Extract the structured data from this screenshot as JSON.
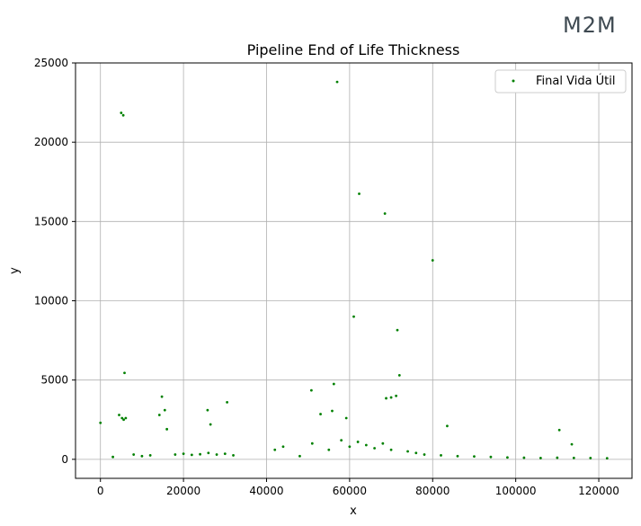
{
  "logo_text": "M2M",
  "chart_data": {
    "type": "scatter",
    "title": "Pipeline End of Life Thickness",
    "xlabel": "x",
    "ylabel": "y",
    "xlim": [
      -6000,
      128000
    ],
    "ylim": [
      -1200,
      25000
    ],
    "xticks": [
      0,
      20000,
      40000,
      60000,
      80000,
      100000,
      120000
    ],
    "yticks": [
      0,
      5000,
      10000,
      15000,
      20000,
      25000
    ],
    "grid": true,
    "legend": "top-right",
    "series": [
      {
        "name": "Final Vida Útil",
        "color": "#008000",
        "x": [
          5000,
          5500,
          57000,
          62300,
          68500,
          80000,
          61000,
          71500,
          72000,
          5800,
          56200,
          50800,
          55800,
          30500,
          14800,
          25800,
          0,
          4500,
          5200,
          5600,
          6100,
          14200,
          15500,
          16000,
          26500,
          68800,
          70000,
          71200,
          59200,
          53000,
          83500,
          110500,
          113500,
          3000,
          8000,
          10000,
          12000,
          18000,
          20000,
          22000,
          24000,
          26000,
          28000,
          30000,
          32000,
          42000,
          44000,
          48000,
          51000,
          55000,
          58000,
          60000,
          62000,
          64000,
          66000,
          68000,
          70000,
          74000,
          76000,
          78000,
          82000,
          86000,
          90000,
          94000,
          98000,
          102000,
          106000,
          110000,
          114000,
          118000,
          122000
        ],
        "y": [
          21850,
          21700,
          23800,
          16750,
          15500,
          12550,
          9000,
          8150,
          5300,
          5450,
          4750,
          4350,
          3050,
          3600,
          3950,
          3100,
          2300,
          2800,
          2600,
          2500,
          2600,
          2800,
          3100,
          1900,
          2200,
          3850,
          3900,
          4000,
          2600,
          2850,
          2100,
          1850,
          950,
          150,
          300,
          200,
          250,
          300,
          350,
          280,
          320,
          400,
          300,
          350,
          250,
          600,
          800,
          200,
          1000,
          600,
          1200,
          800,
          1100,
          900,
          700,
          1000,
          600,
          500,
          400,
          300,
          250,
          200,
          180,
          150,
          120,
          100,
          80,
          100,
          90,
          80,
          70
        ]
      }
    ]
  }
}
